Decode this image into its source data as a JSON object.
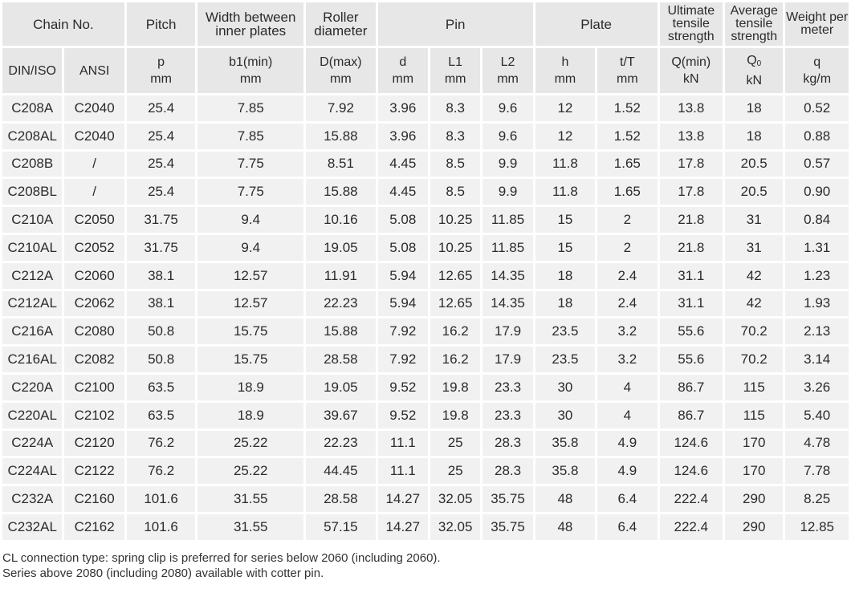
{
  "header": {
    "chain_no": "Chain No.",
    "pitch": "Pitch",
    "width_inner": "Width between inner plates",
    "roller_diameter": "Roller diameter",
    "pin": "Pin",
    "plate": "Plate",
    "ultimate_tensile": "Ultimate tensile strength",
    "average_tensile": "Average tensile strength",
    "weight": "Weight per meter"
  },
  "subheader": {
    "din_iso": "DIN/ISO",
    "ansi": "ANSI",
    "p": "p",
    "p_unit": "mm",
    "b1": "b1(min)",
    "b1_unit": "mm",
    "d_max": "D(max)",
    "d_max_unit": "mm",
    "d": "d",
    "d_unit": "mm",
    "l1": "L1",
    "l1_unit": "mm",
    "l2": "L2",
    "l2_unit": "mm",
    "h": "h",
    "h_unit": "mm",
    "t": "t/T",
    "t_unit": "mm",
    "q_min": "Q(min)",
    "q_min_unit": "kN",
    "q0": "Q",
    "q0_sub": "0",
    "q0_unit": "kN",
    "q": "q",
    "q_unit": "kg/m"
  },
  "rows": [
    [
      "C208A",
      "C2040",
      "25.4",
      "7.85",
      "7.92",
      "3.96",
      "8.3",
      "9.6",
      "12",
      "1.52",
      "13.8",
      "18",
      "0.52"
    ],
    [
      "C208AL",
      "C2040",
      "25.4",
      "7.85",
      "15.88",
      "3.96",
      "8.3",
      "9.6",
      "12",
      "1.52",
      "13.8",
      "18",
      "0.88"
    ],
    [
      "C208B",
      "/",
      "25.4",
      "7.75",
      "8.51",
      "4.45",
      "8.5",
      "9.9",
      "11.8",
      "1.65",
      "17.8",
      "20.5",
      "0.57"
    ],
    [
      "C208BL",
      "/",
      "25.4",
      "7.75",
      "15.88",
      "4.45",
      "8.5",
      "9.9",
      "11.8",
      "1.65",
      "17.8",
      "20.5",
      "0.90"
    ],
    [
      "C210A",
      "C2050",
      "31.75",
      "9.4",
      "10.16",
      "5.08",
      "10.25",
      "11.85",
      "15",
      "2",
      "21.8",
      "31",
      "0.84"
    ],
    [
      "C210AL",
      "C2052",
      "31.75",
      "9.4",
      "19.05",
      "5.08",
      "10.25",
      "11.85",
      "15",
      "2",
      "21.8",
      "31",
      "1.31"
    ],
    [
      "C212A",
      "C2060",
      "38.1",
      "12.57",
      "11.91",
      "5.94",
      "12.65",
      "14.35",
      "18",
      "2.4",
      "31.1",
      "42",
      "1.23"
    ],
    [
      "C212AL",
      "C2062",
      "38.1",
      "12.57",
      "22.23",
      "5.94",
      "12.65",
      "14.35",
      "18",
      "2.4",
      "31.1",
      "42",
      "1.93"
    ],
    [
      "C216A",
      "C2080",
      "50.8",
      "15.75",
      "15.88",
      "7.92",
      "16.2",
      "17.9",
      "23.5",
      "3.2",
      "55.6",
      "70.2",
      "2.13"
    ],
    [
      "C216AL",
      "C2082",
      "50.8",
      "15.75",
      "28.58",
      "7.92",
      "16.2",
      "17.9",
      "23.5",
      "3.2",
      "55.6",
      "70.2",
      "3.14"
    ],
    [
      "C220A",
      "C2100",
      "63.5",
      "18.9",
      "19.05",
      "9.52",
      "19.8",
      "23.3",
      "30",
      "4",
      "86.7",
      "115",
      "3.26"
    ],
    [
      "C220AL",
      "C2102",
      "63.5",
      "18.9",
      "39.67",
      "9.52",
      "19.8",
      "23.3",
      "30",
      "4",
      "86.7",
      "115",
      "5.40"
    ],
    [
      "C224A",
      "C2120",
      "76.2",
      "25.22",
      "22.23",
      "11.1",
      "25",
      "28.3",
      "35.8",
      "4.9",
      "124.6",
      "170",
      "4.78"
    ],
    [
      "C224AL",
      "C2122",
      "76.2",
      "25.22",
      "44.45",
      "11.1",
      "25",
      "28.3",
      "35.8",
      "4.9",
      "124.6",
      "170",
      "7.78"
    ],
    [
      "C232A",
      "C2160",
      "101.6",
      "31.55",
      "28.58",
      "14.27",
      "32.05",
      "35.75",
      "48",
      "6.4",
      "222.4",
      "290",
      "8.25"
    ],
    [
      "C232AL",
      "C2162",
      "101.6",
      "31.55",
      "57.15",
      "14.27",
      "32.05",
      "35.75",
      "48",
      "6.4",
      "222.4",
      "290",
      "12.85"
    ]
  ],
  "notes": {
    "line1": "CL connection type: spring clip is preferred for series below 2060 (including 2060).",
    "line2": "Series above 2080 (including 2080) available with cotter pin."
  }
}
